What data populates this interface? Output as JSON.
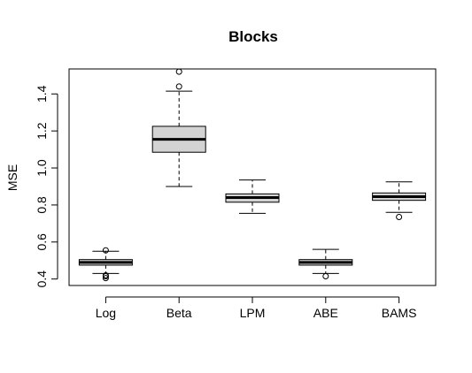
{
  "chart_data": {
    "type": "boxplot",
    "title": "Blocks",
    "xlabel": "",
    "ylabel": "MSE",
    "ylim": [
      0.365,
      1.535
    ],
    "yticks": [
      0.4,
      0.6,
      0.8,
      1.0,
      1.2,
      1.4
    ],
    "ytick_labels": [
      "0.4",
      "0.6",
      "0.8",
      "1.0",
      "1.2",
      "1.4"
    ],
    "categories": [
      "Log",
      "Beta",
      "LPM",
      "ABE",
      "BAMS"
    ],
    "box_fill": "#d3d3d3",
    "grid": false,
    "boxes": [
      {
        "label": "Log",
        "whisker_low": 0.43,
        "q1": 0.475,
        "median": 0.49,
        "q3": 0.505,
        "whisker_high": 0.55,
        "outliers": [
          0.405,
          0.415,
          0.42,
          0.555
        ]
      },
      {
        "label": "Beta",
        "whisker_low": 0.9,
        "q1": 1.085,
        "median": 1.155,
        "q3": 1.225,
        "whisker_high": 1.415,
        "outliers": [
          1.44,
          1.52
        ]
      },
      {
        "label": "LPM",
        "whisker_low": 0.755,
        "q1": 0.815,
        "median": 0.84,
        "q3": 0.86,
        "whisker_high": 0.935,
        "outliers": []
      },
      {
        "label": "ABE",
        "whisker_low": 0.43,
        "q1": 0.475,
        "median": 0.49,
        "q3": 0.505,
        "whisker_high": 0.56,
        "outliers": [
          0.415
        ]
      },
      {
        "label": "BAMS",
        "whisker_low": 0.76,
        "q1": 0.825,
        "median": 0.845,
        "q3": 0.865,
        "whisker_high": 0.925,
        "outliers": [
          0.735
        ]
      }
    ]
  }
}
